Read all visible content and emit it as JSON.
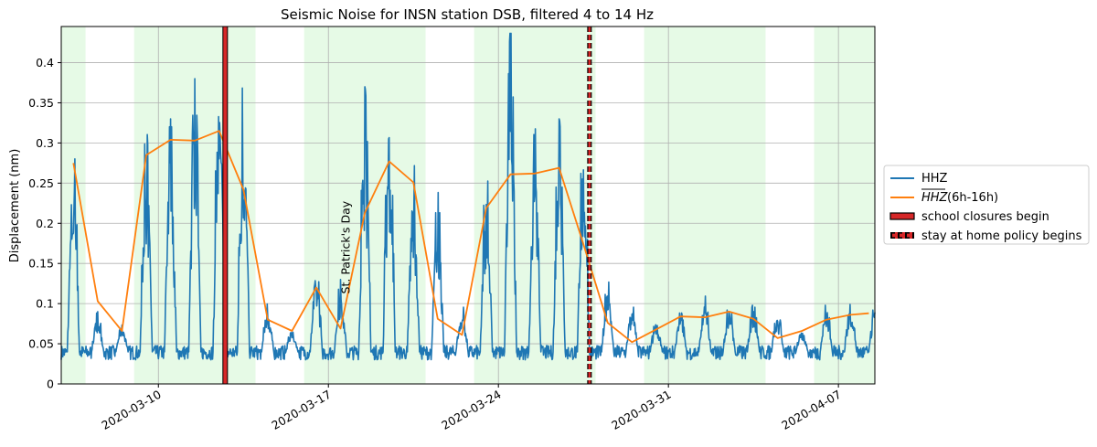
{
  "chart_data": {
    "type": "line",
    "title": "Seismic Noise for INSN station DSB, filtered 4 to 14 Hz",
    "xlabel": "",
    "ylabel": "Displacement (nm)",
    "xlim": [
      "2020-03-06T00:00",
      "2020-04-08T12:00"
    ],
    "ylim": [
      0,
      0.445
    ],
    "y_ticks": [
      0,
      0.05,
      0.1,
      0.15,
      0.2,
      0.25,
      0.3,
      0.35,
      0.4
    ],
    "y_tick_labels": [
      "0",
      "0.05",
      "0.1",
      "0.15",
      "0.2",
      "0.25",
      "0.3",
      "0.35",
      "0.4"
    ],
    "x_ticks": [
      "2020-03-10",
      "2020-03-17",
      "2020-03-24",
      "2020-03-31",
      "2020-04-07"
    ],
    "grid": true,
    "legend_position": "right-outside",
    "colors": {
      "hhz": "#1f77b4",
      "mean": "#ff7f0e",
      "weekday_shade": "#e6fae6",
      "event_line": "#d62728"
    },
    "weekday_spans": [
      [
        "2020-03-06",
        "2020-03-07"
      ],
      [
        "2020-03-09",
        "2020-03-14"
      ],
      [
        "2020-03-16",
        "2020-03-21"
      ],
      [
        "2020-03-23",
        "2020-03-28"
      ],
      [
        "2020-03-30",
        "2020-04-04"
      ],
      [
        "2020-04-06",
        "2020-04-08T12:00"
      ]
    ],
    "daily_peaks": [
      {
        "date": "2020-03-06",
        "peak": 0.3
      },
      {
        "date": "2020-03-07",
        "peak": 0.09
      },
      {
        "date": "2020-03-08",
        "peak": 0.08
      },
      {
        "date": "2020-03-09",
        "peak": 0.32
      },
      {
        "date": "2020-03-10",
        "peak": 0.33
      },
      {
        "date": "2020-03-11",
        "peak": 0.38
      },
      {
        "date": "2020-03-12",
        "peak": 0.41
      },
      {
        "date": "2020-03-13",
        "peak": 0.38
      },
      {
        "date": "2020-03-14",
        "peak": 0.1
      },
      {
        "date": "2020-03-15",
        "peak": 0.07
      },
      {
        "date": "2020-03-16",
        "peak": 0.15
      },
      {
        "date": "2020-03-17",
        "peak": 0.13
      },
      {
        "date": "2020-03-18",
        "peak": 0.37
      },
      {
        "date": "2020-03-19",
        "peak": 0.36
      },
      {
        "date": "2020-03-20",
        "peak": 0.28
      },
      {
        "date": "2020-03-21",
        "peak": 0.24
      },
      {
        "date": "2020-03-22",
        "peak": 0.1
      },
      {
        "date": "2020-03-23",
        "peak": 0.27
      },
      {
        "date": "2020-03-24",
        "peak": 0.44
      },
      {
        "date": "2020-03-25",
        "peak": 0.32
      },
      {
        "date": "2020-03-26",
        "peak": 0.33
      },
      {
        "date": "2020-03-27",
        "peak": 0.32
      },
      {
        "date": "2020-03-28",
        "peak": 0.13
      },
      {
        "date": "2020-03-29",
        "peak": 0.1
      },
      {
        "date": "2020-03-30",
        "peak": 0.08
      },
      {
        "date": "2020-03-31",
        "peak": 0.09
      },
      {
        "date": "2020-04-01",
        "peak": 0.11
      },
      {
        "date": "2020-04-02",
        "peak": 0.1
      },
      {
        "date": "2020-04-03",
        "peak": 0.1
      },
      {
        "date": "2020-04-04",
        "peak": 0.09
      },
      {
        "date": "2020-04-05",
        "peak": 0.07
      },
      {
        "date": "2020-04-06",
        "peak": 0.1
      },
      {
        "date": "2020-04-07",
        "peak": 0.11
      },
      {
        "date": "2020-04-08",
        "peak": 0.1
      }
    ],
    "daily_baseline": 0.04,
    "series": [
      {
        "name": "HHZ",
        "color": "#1f77b4",
        "kind": "raw-daily-cycle"
      },
      {
        "name": "HHZ (6h-16h)",
        "color": "#ff7f0e",
        "x": [
          "2020-03-06T12:00",
          "2020-03-07T12:00",
          "2020-03-08T12:00",
          "2020-03-09T12:00",
          "2020-03-10T12:00",
          "2020-03-11T12:00",
          "2020-03-12T12:00",
          "2020-03-13T12:00",
          "2020-03-14T12:00",
          "2020-03-15T12:00",
          "2020-03-16T12:00",
          "2020-03-17T12:00",
          "2020-03-18T12:00",
          "2020-03-19T12:00",
          "2020-03-20T12:00",
          "2020-03-21T12:00",
          "2020-03-22T12:00",
          "2020-03-23T12:00",
          "2020-03-24T12:00",
          "2020-03-25T12:00",
          "2020-03-26T12:00",
          "2020-03-27T12:00",
          "2020-03-28T12:00",
          "2020-03-29T12:00",
          "2020-03-30T12:00",
          "2020-03-31T12:00",
          "2020-04-01T12:00",
          "2020-04-02T12:00",
          "2020-04-03T12:00",
          "2020-04-04T12:00",
          "2020-04-05T12:00",
          "2020-04-06T12:00",
          "2020-04-07T12:00",
          "2020-04-08T06:00"
        ],
        "values": [
          0.275,
          0.103,
          0.066,
          0.285,
          0.304,
          0.303,
          0.315,
          0.242,
          0.08,
          0.066,
          0.12,
          0.069,
          0.213,
          0.277,
          0.251,
          0.081,
          0.061,
          0.219,
          0.261,
          0.262,
          0.269,
          0.174,
          0.076,
          0.052,
          0.068,
          0.084,
          0.083,
          0.09,
          0.081,
          0.057,
          0.066,
          0.08,
          0.086,
          0.088
        ]
      }
    ],
    "events": [
      {
        "label": "school closures begin",
        "date": "2020-03-12T18:00",
        "style": "solid"
      },
      {
        "label": "stay at home policy begins",
        "date": "2020-03-27T18:00",
        "style": "dashed"
      }
    ],
    "annotations": [
      {
        "text": "St. Patrick's Day",
        "date": "2020-03-17T12:00",
        "y": 0.17,
        "rotation": 90
      }
    ],
    "legend": {
      "hhz_label": "HHZ",
      "mean_symbol": "HHZ",
      "mean_suffix": " (6h-16h)",
      "school_label": "school closures begin",
      "home_label": "stay at home policy begins"
    }
  }
}
